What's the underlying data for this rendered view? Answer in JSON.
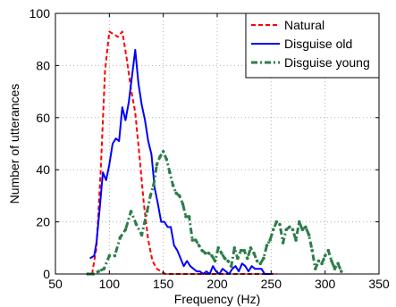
{
  "chart_data": {
    "type": "line",
    "xlabel": "Frequency (Hz)",
    "ylabel": "Number of utterances",
    "xlim": [
      50,
      350
    ],
    "ylim": [
      0,
      100
    ],
    "xticks": [
      "50",
      "100",
      "150",
      "200",
      "250",
      "300",
      "350"
    ],
    "yticks": [
      "0",
      "20",
      "40",
      "60",
      "80",
      "100"
    ],
    "grid": true,
    "legend_position": "top-right",
    "series": [
      {
        "name": "Natural",
        "color": "#ff0000",
        "dash": "dashed",
        "x": [
          84,
          88,
          92,
          96,
          100,
          104,
          108,
          112,
          116,
          120,
          124,
          128,
          132,
          136,
          140,
          144,
          148,
          152,
          156,
          160,
          164,
          168,
          172,
          176,
          180,
          184,
          188,
          192,
          196,
          200,
          205,
          215,
          225,
          235,
          245,
          255
        ],
        "y": [
          0,
          10,
          40,
          78,
          93,
          92,
          91,
          93,
          83,
          71,
          62,
          45,
          27,
          13,
          5,
          2,
          1,
          0,
          0,
          0,
          0,
          0,
          0,
          0,
          0,
          0,
          0,
          0,
          0,
          0,
          0,
          0,
          0,
          0,
          0,
          0
        ]
      },
      {
        "name": "Disguise old",
        "color": "#0000ff",
        "dash": "solid",
        "x": [
          82,
          86,
          88,
          91,
          94,
          97,
          100,
          103,
          106,
          109,
          112,
          115,
          118,
          121,
          124,
          127,
          130,
          133,
          136,
          139,
          142,
          145,
          148,
          151,
          154,
          157,
          160,
          163,
          166,
          169,
          172,
          175,
          178,
          181,
          184,
          187,
          190,
          193,
          196,
          199,
          202,
          205,
          208,
          211,
          214,
          217,
          220,
          223,
          226,
          229,
          232,
          235,
          238,
          241,
          244,
          247,
          250
        ],
        "y": [
          6,
          7,
          12,
          25,
          39,
          36,
          42,
          50,
          52,
          51,
          64,
          59,
          66,
          76,
          86,
          73,
          65,
          59,
          51,
          46,
          33,
          27,
          20,
          20,
          18,
          18,
          11,
          9,
          6,
          3,
          5,
          3,
          2,
          1,
          1,
          0,
          1,
          0,
          3,
          1,
          0,
          2,
          1,
          0,
          2,
          3,
          1,
          4,
          3,
          1,
          3,
          2,
          2,
          2,
          0,
          0,
          0
        ]
      },
      {
        "name": "Disguise young",
        "color": "#2e7d4a",
        "dash": "dashdot",
        "x": [
          80,
          85,
          90,
          95,
          100,
          105,
          110,
          115,
          120,
          125,
          130,
          135,
          138,
          141,
          144,
          147,
          150,
          153,
          156,
          159,
          162,
          165,
          168,
          171,
          174,
          177,
          180,
          183,
          186,
          189,
          192,
          195,
          198,
          201,
          204,
          207,
          210,
          213,
          216,
          219,
          222,
          225,
          228,
          231,
          234,
          237,
          240,
          243,
          246,
          249,
          252,
          255,
          258,
          261,
          264,
          267,
          270,
          273,
          276,
          279,
          282,
          285,
          288,
          291,
          294,
          297,
          300,
          303,
          306,
          309,
          312,
          315
        ],
        "y": [
          0,
          0,
          1,
          2,
          7,
          7,
          14,
          17,
          24,
          19,
          15,
          24,
          30,
          34,
          42,
          45,
          47,
          44,
          39,
          34,
          31,
          30,
          27,
          22,
          22,
          13,
          13,
          11,
          9,
          8,
          8,
          7,
          5,
          10,
          8,
          6,
          5,
          3,
          10,
          6,
          9,
          9,
          6,
          10,
          8,
          5,
          4,
          6,
          11,
          13,
          17,
          20,
          19,
          12,
          17,
          18,
          17,
          13,
          20,
          17,
          18,
          15,
          9,
          2,
          5,
          4,
          7,
          9,
          5,
          2,
          4,
          1
        ]
      }
    ]
  }
}
